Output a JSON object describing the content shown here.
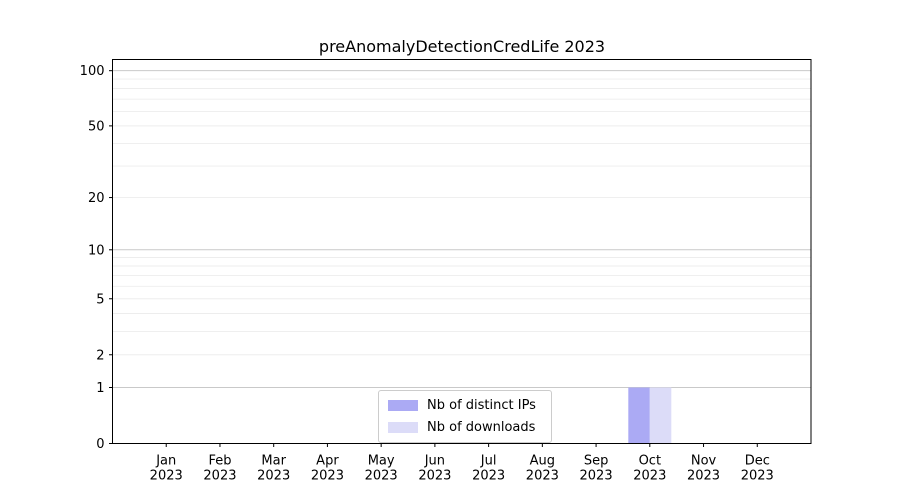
{
  "chart_data": {
    "type": "bar",
    "title": "preAnomalyDetectionCredLife 2023",
    "categories": [
      [
        "Jan",
        "2023"
      ],
      [
        "Feb",
        "2023"
      ],
      [
        "Mar",
        "2023"
      ],
      [
        "Apr",
        "2023"
      ],
      [
        "May",
        "2023"
      ],
      [
        "Jun",
        "2023"
      ],
      [
        "Jul",
        "2023"
      ],
      [
        "Aug",
        "2023"
      ],
      [
        "Sep",
        "2023"
      ],
      [
        "Oct",
        "2023"
      ],
      [
        "Nov",
        "2023"
      ],
      [
        "Dec",
        "2023"
      ]
    ],
    "series": [
      {
        "name": "Nb of distinct IPs",
        "color": "#abaaf4",
        "values": [
          0,
          0,
          0,
          0,
          0,
          0,
          0,
          0,
          0,
          1,
          0,
          0
        ]
      },
      {
        "name": "Nb of downloads",
        "color": "#dcdcf8",
        "values": [
          0,
          0,
          0,
          0,
          0,
          0,
          0,
          0,
          0,
          1,
          0,
          0
        ]
      }
    ],
    "xlabel": "",
    "ylabel": "",
    "yscale": "log1p",
    "yticks": [
      0,
      1,
      2,
      5,
      10,
      20,
      50,
      100
    ],
    "ylim": [
      0,
      115
    ],
    "grid": "horizontal",
    "legend_location": "lower-center-inside",
    "colors": {
      "background": "#ffffff",
      "axis": "#000000",
      "tick_label": "#000000",
      "grid_major": "#c9c9c9",
      "grid_minor": "#ededed",
      "legend_border": "#cccccc"
    }
  }
}
